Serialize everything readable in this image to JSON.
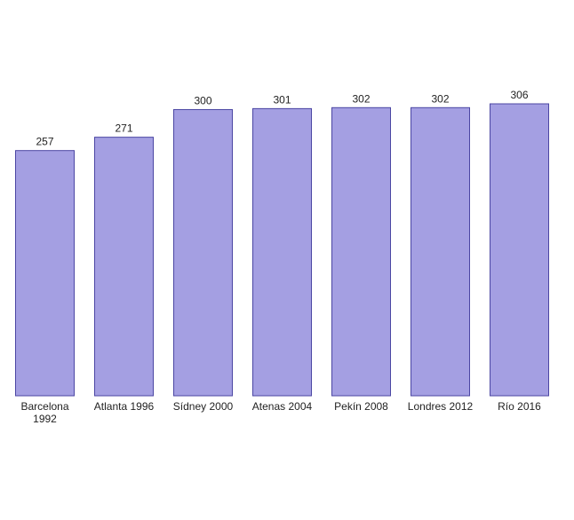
{
  "chart_data": {
    "type": "bar",
    "categories": [
      "Barcelona 1992",
      "Atlanta 1996",
      "Sídney 2000",
      "Atenas 2004",
      "Pekín 2008",
      "Londres 2012",
      "Río 2016"
    ],
    "values": [
      257,
      271,
      300,
      301,
      302,
      302,
      306
    ],
    "color": "#a49fe2"
  }
}
